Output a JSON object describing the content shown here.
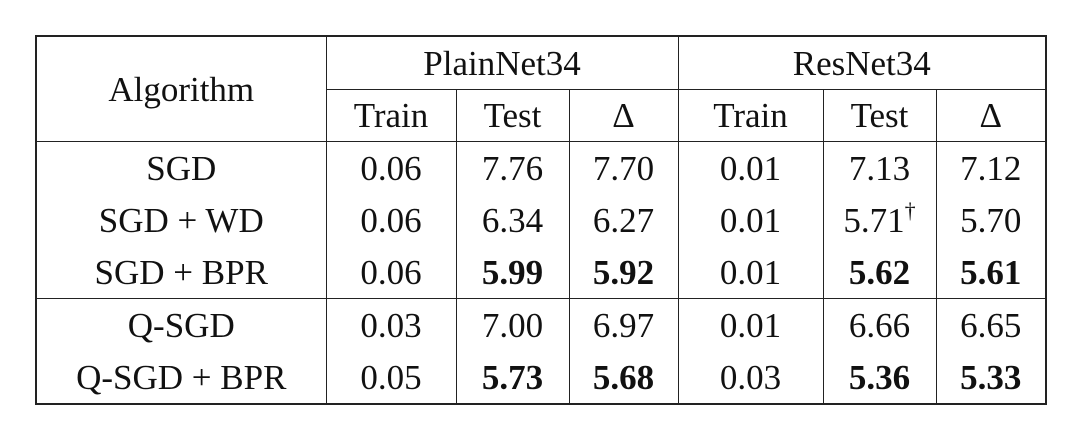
{
  "table": {
    "header": {
      "algorithm": "Algorithm",
      "groups": [
        "PlainNet34",
        "ResNet34"
      ],
      "columns": [
        "Train",
        "Test",
        "Δ",
        "Train",
        "Test",
        "Δ"
      ]
    },
    "row_groups": [
      [
        {
          "name": "SGD",
          "cells": [
            "0.06",
            "7.76",
            "7.70",
            "0.01",
            "7.13",
            "7.12"
          ]
        },
        {
          "name": "SGD + WD",
          "cells": [
            "0.06",
            "6.34",
            "6.27",
            "0.01",
            {
              "text": "5.71",
              "sup": "†"
            },
            "5.70"
          ]
        },
        {
          "name": "SGD + BPR",
          "cells": [
            "0.06",
            {
              "text": "5.99",
              "bold": true
            },
            {
              "text": "5.92",
              "bold": true
            },
            "0.01",
            {
              "text": "5.62",
              "bold": true
            },
            {
              "text": "5.61",
              "bold": true
            }
          ]
        }
      ],
      [
        {
          "name": "Q-SGD",
          "cells": [
            "0.03",
            "7.00",
            "6.97",
            "0.01",
            "6.66",
            "6.65"
          ]
        },
        {
          "name": "Q-SGD + BPR",
          "cells": [
            "0.05",
            {
              "text": "5.73",
              "bold": true
            },
            {
              "text": "5.68",
              "bold": true
            },
            "0.03",
            {
              "text": "5.36",
              "bold": true
            },
            {
              "text": "5.33",
              "bold": true
            }
          ]
        }
      ]
    ]
  }
}
